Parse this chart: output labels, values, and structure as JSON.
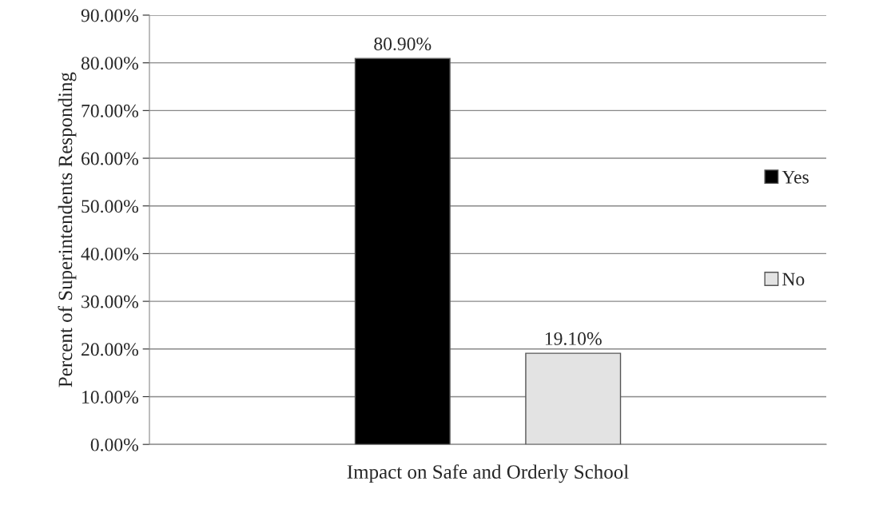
{
  "chart_data": {
    "type": "bar",
    "ylabel": "Percent of Superintendents Responding",
    "categories": [
      "Impact on Safe and Orderly School"
    ],
    "series": [
      {
        "name": "Yes",
        "color": "#000000",
        "values": [
          80.9
        ],
        "value_labels": [
          "80.90%"
        ]
      },
      {
        "name": "No",
        "color": "#e3e3e3",
        "values": [
          19.1
        ],
        "value_labels": [
          "19.10%"
        ]
      }
    ],
    "ylim": [
      0,
      90
    ],
    "yticks": [
      {
        "value": 0,
        "label": "0.00%"
      },
      {
        "value": 10,
        "label": "10.00%"
      },
      {
        "value": 20,
        "label": "20.00%"
      },
      {
        "value": 30,
        "label": "30.00%"
      },
      {
        "value": 40,
        "label": "40.00%"
      },
      {
        "value": 50,
        "label": "50.00%"
      },
      {
        "value": 60,
        "label": "60.00%"
      },
      {
        "value": 70,
        "label": "70.00%"
      },
      {
        "value": 80,
        "label": "80.00%"
      },
      {
        "value": 90,
        "label": "90.00%"
      }
    ],
    "grid": "y",
    "legend": "right"
  }
}
